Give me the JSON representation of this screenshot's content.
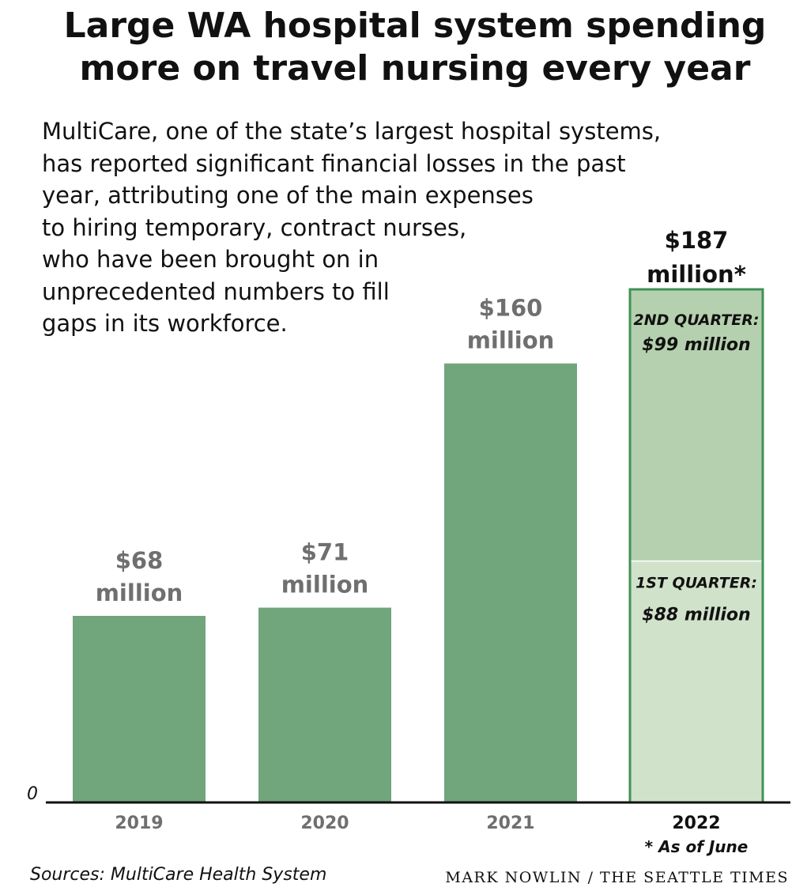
{
  "chart_data": {
    "type": "bar",
    "title_lines": [
      "Large WA hospital system spending",
      "more on travel nursing every year"
    ],
    "subtitle_lines": [
      "MultiCare, one of the state’s largest hospital systems,",
      "has reported significant financial losses in the past",
      "year, attributing one of the main expenses",
      "to hiring temporary, contract nurses,",
      "who have been brought on in",
      "unprecedented numbers to fill",
      "gaps in its workforce."
    ],
    "categories": [
      "2019",
      "2020",
      "2021",
      "2022"
    ],
    "values": [
      68,
      71,
      160,
      187
    ],
    "units": "million dollars",
    "value_labels": [
      [
        "$68",
        "million"
      ],
      [
        "$71",
        "million"
      ],
      [
        "$160",
        "million"
      ],
      [
        "$187",
        "million*"
      ]
    ],
    "stacked_2022": [
      {
        "label": "1ST QUARTER:",
        "value_text": "$88 million",
        "value": 88
      },
      {
        "label": "2ND QUARTER:",
        "value_text": "$99 million",
        "value": 99
      }
    ],
    "zero_label": "0",
    "footnote": "* As of June",
    "ylim": [
      0,
      187
    ],
    "grid": false,
    "colors": {
      "bar": "#71a57c",
      "q1": "#d1e2cb",
      "q2": "#b5d0ae",
      "outline": "#3f9255",
      "value_label": "#6f6f6f",
      "axis": "#111111"
    }
  },
  "footer": {
    "source": "Sources: MultiCare Health System",
    "credit": "MARK NOWLIN / THE SEATTLE TIMES"
  }
}
